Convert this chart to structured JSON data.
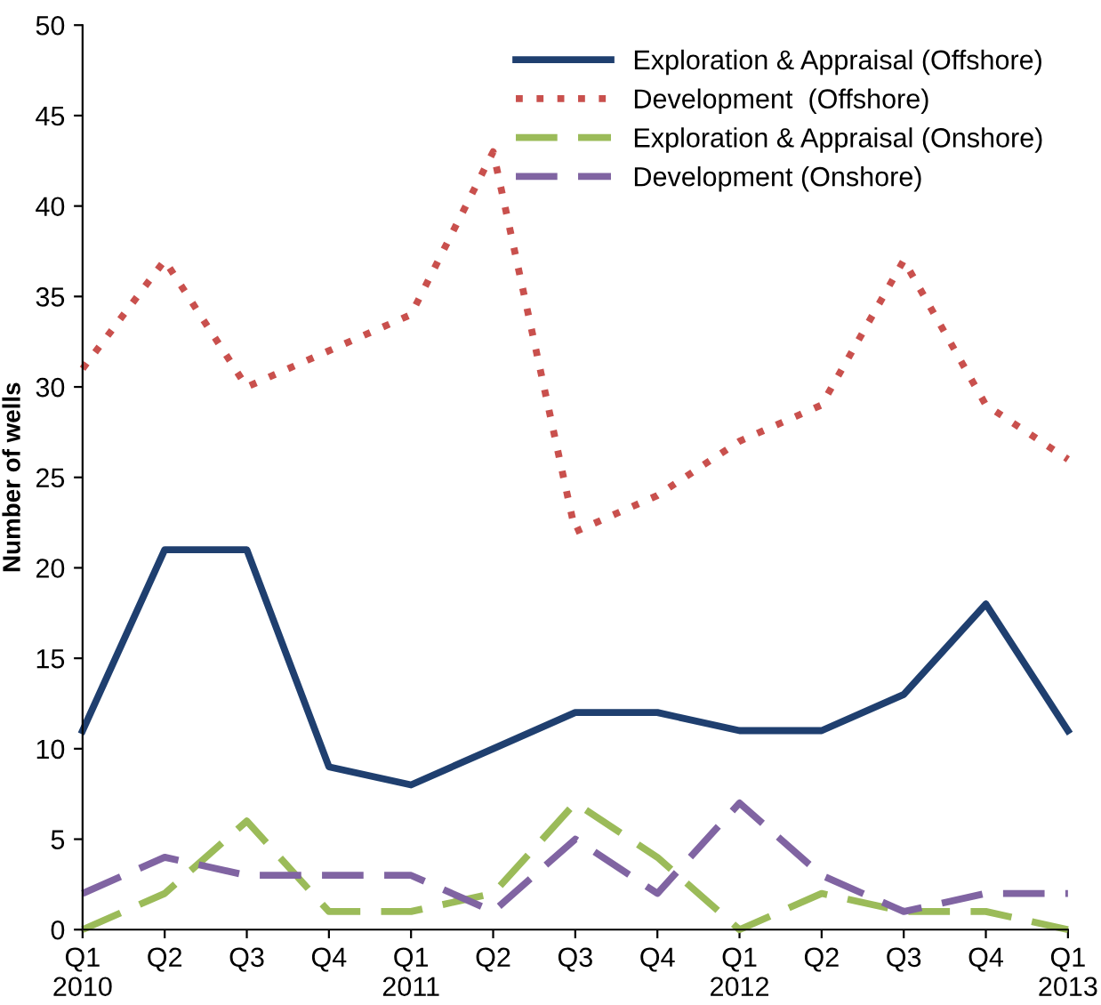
{
  "chart_data": {
    "type": "line",
    "ylabel": "Number of wells",
    "categories": [
      "Q1\n2010",
      "Q2",
      "Q3",
      "Q4",
      "Q1\n2011",
      "Q2",
      "Q3",
      "Q4",
      "Q1\n2012",
      "Q2",
      "Q3",
      "Q4",
      "Q1\n2013"
    ],
    "series": [
      {
        "name": "Exploration & Appraisal (Offshore)",
        "color": "#1f3f6f",
        "line_style": "solid",
        "values": [
          11,
          21,
          21,
          9,
          8,
          10,
          12,
          12,
          11,
          11,
          13,
          18,
          11
        ]
      },
      {
        "name": "Development  (Offshore)",
        "color": "#c9504d",
        "line_style": "dotted",
        "values": [
          31,
          37,
          30,
          32,
          34,
          43,
          22,
          24,
          27,
          29,
          37,
          29,
          26
        ]
      },
      {
        "name": "Exploration & Appraisal (Onshore)",
        "color": "#9bbb59",
        "line_style": "dashed",
        "values": [
          0,
          2,
          6,
          1,
          1,
          2,
          7,
          4,
          0,
          2,
          1,
          1,
          0
        ]
      },
      {
        "name": "Development (Onshore)",
        "color": "#8064a2",
        "line_style": "dashed",
        "values": [
          2,
          4,
          3,
          3,
          3,
          1,
          5,
          2,
          7,
          3,
          1,
          2,
          2
        ]
      }
    ],
    "ylim": [
      0,
      50
    ],
    "yticks": [
      0,
      5,
      10,
      15,
      20,
      25,
      30,
      35,
      40,
      45,
      50
    ],
    "grid": false,
    "legend": "top right",
    "marker": "none"
  }
}
